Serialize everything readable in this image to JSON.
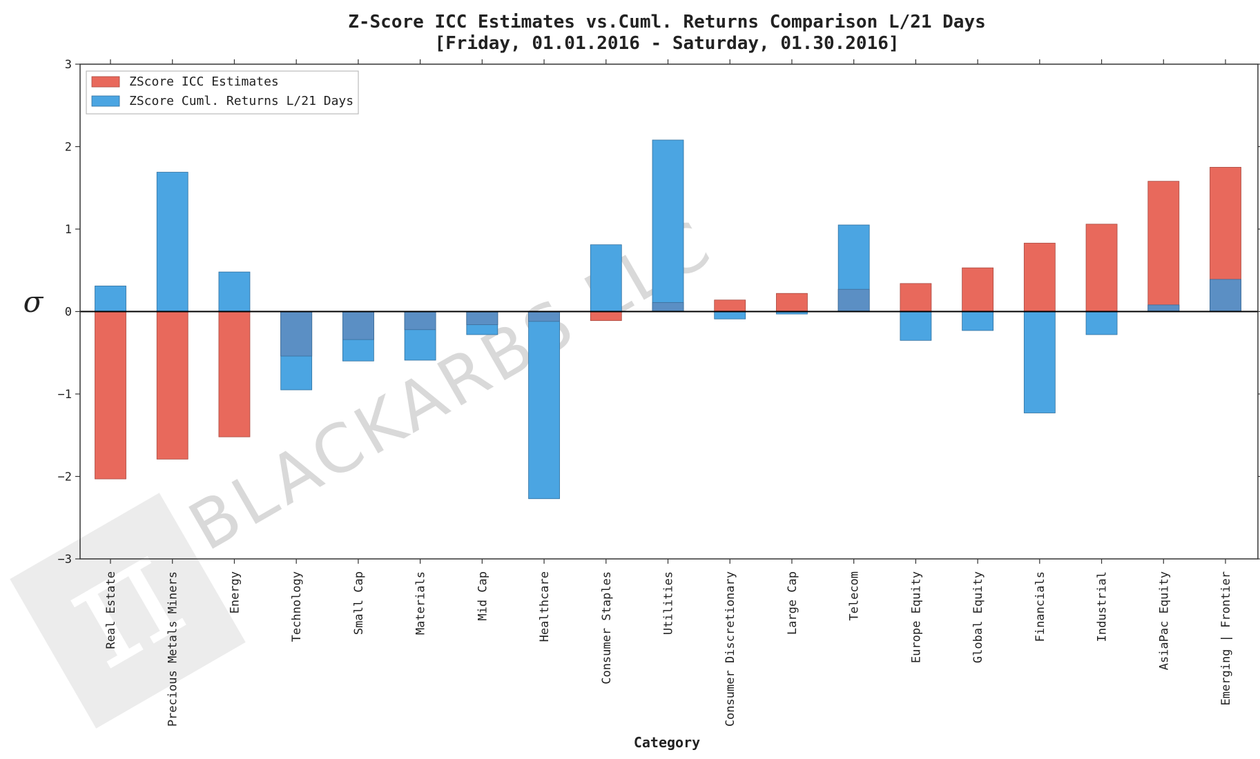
{
  "chart_data": {
    "type": "bar",
    "title": "Z-Score ICC Estimates vs.Cuml. Returns Comparison L/21 Days",
    "subtitle": "[Friday, 01.01.2016 - Saturday, 01.30.2016]",
    "xlabel": "Category",
    "ylabel": "σ",
    "ylim": [
      -3,
      3
    ],
    "yticks": [
      -3,
      -2,
      -1,
      0,
      1,
      2,
      3
    ],
    "ytick_labels": [
      "−3",
      "−2",
      "−1",
      "0",
      "1",
      "2",
      "3"
    ],
    "legend_position": "top-left",
    "watermark": "BLACKARBS LLC",
    "categories": [
      "Real Estate",
      "Precious Metals Miners",
      "Energy",
      "Technology",
      "Small Cap",
      "Materials",
      "Mid Cap",
      "Healthcare",
      "Consumer Staples",
      "Utilities",
      "Consumer Discretionary",
      "Large Cap",
      "Telecom",
      "Europe Equity",
      "Global Equity",
      "Financials",
      "Industrial",
      "AsiaPac Equity",
      "Emerging | Frontier"
    ],
    "series": [
      {
        "name": "ZScore ICC Estimates",
        "color": "#e8695c",
        "values": [
          -2.03,
          -1.79,
          -1.52,
          -0.54,
          -0.34,
          -0.22,
          -0.16,
          -0.12,
          -0.11,
          0.11,
          0.14,
          0.22,
          0.27,
          0.34,
          0.53,
          0.83,
          1.06,
          1.58,
          1.75
        ]
      },
      {
        "name": "ZScore Cuml. Returns L/21 Days",
        "color": "#4ba5e2",
        "values": [
          0.31,
          1.69,
          0.48,
          -0.95,
          -0.6,
          -0.59,
          -0.28,
          -2.27,
          0.81,
          2.08,
          -0.09,
          -0.03,
          1.05,
          -0.35,
          -0.23,
          -1.23,
          -0.28,
          0.08,
          0.39
        ]
      }
    ]
  }
}
